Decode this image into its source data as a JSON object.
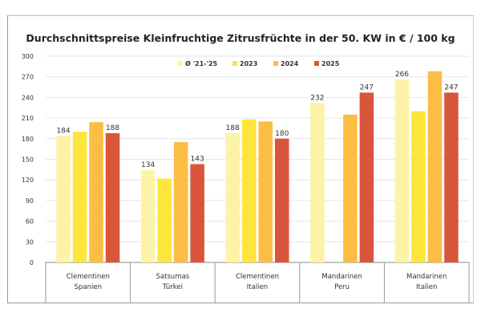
{
  "chart_data": {
    "type": "bar",
    "title": "Durchschnittspreise Kleinfruchtige Zitrusfrüchte in der 50. KW in € / 100 kg",
    "categories": [
      [
        "Clementinen",
        "Spanien"
      ],
      [
        "Satsumas",
        "Türkei"
      ],
      [
        "Clementinen",
        "Italien"
      ],
      [
        "Mandarinen",
        "Peru"
      ],
      [
        "Mandarinen",
        "Italien"
      ]
    ],
    "series": [
      {
        "name": "Ø '21-'25",
        "color": "#fdf3a6",
        "values": [
          184,
          134,
          188,
          232,
          266
        ],
        "labels": [
          "184",
          "134",
          "188",
          "232",
          "266"
        ]
      },
      {
        "name": "2023",
        "color": "#fde53c",
        "values": [
          190,
          122,
          208,
          null,
          220
        ],
        "labels": [
          null,
          null,
          null,
          null,
          null
        ]
      },
      {
        "name": "2024",
        "color": "#fbbd43",
        "values": [
          204,
          175,
          205,
          215,
          278
        ],
        "labels": [
          null,
          null,
          null,
          null,
          null
        ]
      },
      {
        "name": "2025",
        "color": "#d9553b",
        "values": [
          188,
          143,
          180,
          247,
          247
        ],
        "labels": [
          "188",
          "143",
          "180",
          "247",
          "247"
        ]
      }
    ],
    "yticks": [
      "0",
      "30",
      "60",
      "90",
      "120",
      "150",
      "180",
      "210",
      "240",
      "270",
      "300"
    ],
    "ylim": [
      0,
      300
    ],
    "grid": true,
    "legend": "top-center"
  }
}
